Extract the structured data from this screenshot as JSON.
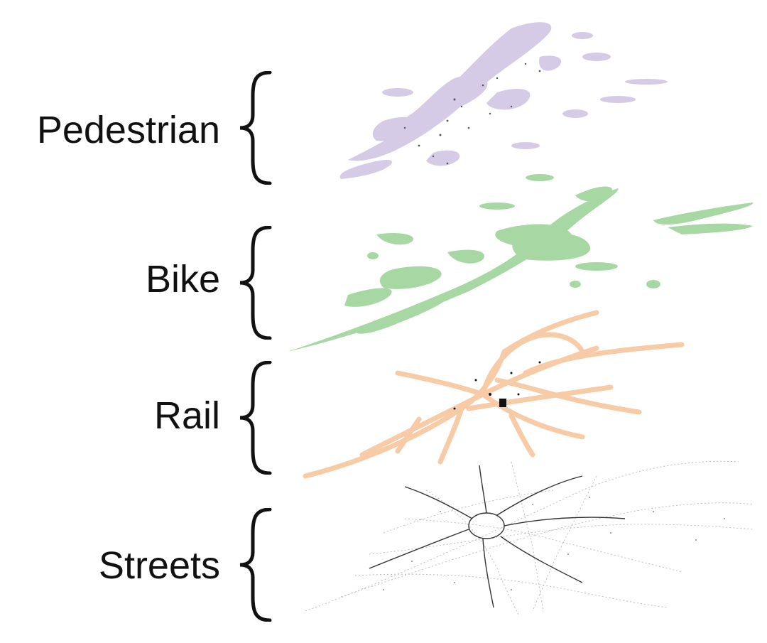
{
  "layers": {
    "pedestrian": {
      "label": "Pedestrian",
      "color": "#d6cbe6"
    },
    "bike": {
      "label": "Bike",
      "color": "#a7d8a3"
    },
    "rail": {
      "label": "Rail",
      "color": "#f7cba5"
    },
    "streets": {
      "label": "Streets",
      "color": "#9a9a9a"
    }
  }
}
